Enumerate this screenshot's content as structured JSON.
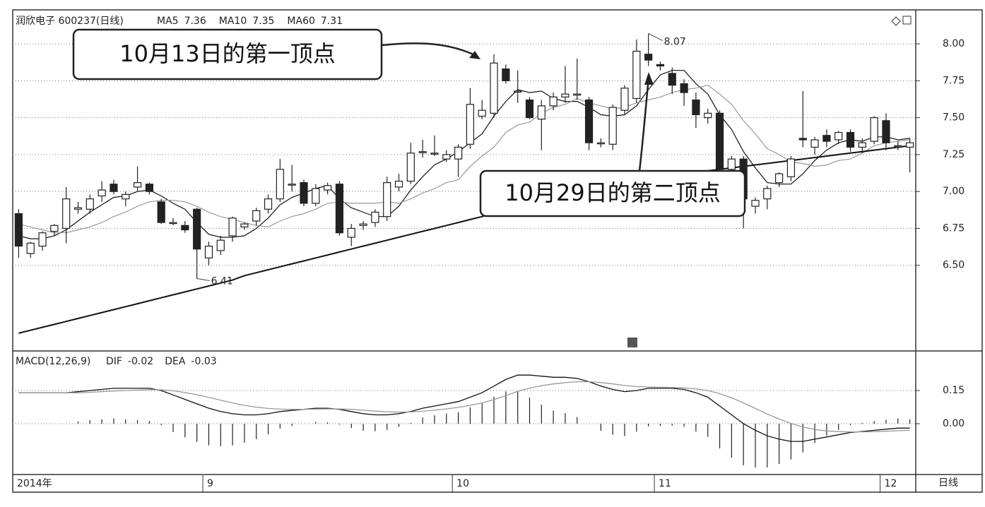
{
  "chart_data": {
    "type": "candlestick",
    "title": "润欣电子 600237(日线)",
    "period_label": "日线",
    "categories": [
      "2014年",
      null,
      null,
      null,
      null,
      null,
      null,
      null,
      null,
      null,
      null,
      null,
      null,
      null,
      null,
      null,
      "9",
      null,
      null,
      null,
      null,
      null,
      null,
      null,
      null,
      null,
      null,
      null,
      null,
      null,
      null,
      null,
      null,
      null,
      null,
      null,
      null,
      "10",
      null,
      null,
      null,
      null,
      null,
      null,
      null,
      null,
      null,
      null,
      null,
      null,
      null,
      null,
      null,
      null,
      "11",
      null,
      null,
      null,
      null,
      null,
      null,
      null,
      null,
      null,
      null,
      null,
      null,
      null,
      null,
      null,
      null,
      null,
      null,
      "12",
      null,
      null
    ],
    "open": [
      6.85,
      6.58,
      6.63,
      6.73,
      6.75,
      6.88,
      6.88,
      6.97,
      7.05,
      6.95,
      7.03,
      7.05,
      6.93,
      6.79,
      6.77,
      6.88,
      6.55,
      6.6,
      6.7,
      6.76,
      6.8,
      6.88,
      6.95,
      7.05,
      7.06,
      6.92,
      7.01,
      7.05,
      6.69,
      6.77,
      6.79,
      6.83,
      7.03,
      7.07,
      7.27,
      7.26,
      7.22,
      7.22,
      7.32,
      7.51,
      7.53,
      7.83,
      7.68,
      7.62,
      7.49,
      7.58,
      7.64,
      7.66,
      7.62,
      7.33,
      7.32,
      7.55,
      7.63,
      7.93,
      7.86,
      7.8,
      7.73,
      7.62,
      7.5,
      7.53,
      7.15,
      7.22,
      6.9,
      6.95,
      7.06,
      7.1,
      7.36,
      7.3,
      7.38,
      7.35,
      7.4,
      7.3,
      7.34,
      7.48,
      7.31,
      7.3
    ],
    "high": [
      6.88,
      6.66,
      6.73,
      6.78,
      7.03,
      6.93,
      6.98,
      7.07,
      7.08,
      7.0,
      7.17,
      7.06,
      6.95,
      6.82,
      6.8,
      6.89,
      6.66,
      6.7,
      6.83,
      6.79,
      6.89,
      6.98,
      7.22,
      7.18,
      7.08,
      7.05,
      7.06,
      7.07,
      6.78,
      6.8,
      6.88,
      7.1,
      7.12,
      7.33,
      7.35,
      7.38,
      7.28,
      7.32,
      7.7,
      7.62,
      7.93,
      7.86,
      7.82,
      7.64,
      7.62,
      7.67,
      7.85,
      7.9,
      7.64,
      7.36,
      7.59,
      7.72,
      8.03,
      8.07,
      7.88,
      7.84,
      7.76,
      7.67,
      7.56,
      7.55,
      7.24,
      7.24,
      6.96,
      7.04,
      7.13,
      7.24,
      7.68,
      7.37,
      7.42,
      7.41,
      7.42,
      7.36,
      7.51,
      7.53,
      7.34,
      7.36
    ],
    "low": [
      6.55,
      6.55,
      6.6,
      6.7,
      6.65,
      6.85,
      6.85,
      6.93,
      6.98,
      6.9,
      7.0,
      6.98,
      6.78,
      6.77,
      6.72,
      6.41,
      6.5,
      6.57,
      6.66,
      6.74,
      6.77,
      6.85,
      6.93,
      7.0,
      6.9,
      6.9,
      6.98,
      6.7,
      6.63,
      6.74,
      6.76,
      6.8,
      7.0,
      7.05,
      7.23,
      7.24,
      7.2,
      7.1,
      7.29,
      7.49,
      7.5,
      7.73,
      7.6,
      7.49,
      7.28,
      7.55,
      7.6,
      7.62,
      7.28,
      7.3,
      7.28,
      7.52,
      7.6,
      7.85,
      7.82,
      7.66,
      7.58,
      7.43,
      7.46,
      7.15,
      7.1,
      6.75,
      6.85,
      6.88,
      7.03,
      7.07,
      7.3,
      7.25,
      7.3,
      7.32,
      7.27,
      7.26,
      7.32,
      7.28,
      7.28,
      7.13
    ],
    "close": [
      6.63,
      6.65,
      6.72,
      6.77,
      6.95,
      6.89,
      6.95,
      7.01,
      7.0,
      6.98,
      7.06,
      7.0,
      6.79,
      6.79,
      6.74,
      6.61,
      6.63,
      6.67,
      6.82,
      6.78,
      6.87,
      6.95,
      7.15,
      7.05,
      6.92,
      7.02,
      7.04,
      6.72,
      6.75,
      6.78,
      6.86,
      7.06,
      7.07,
      7.26,
      7.27,
      7.26,
      7.25,
      7.3,
      7.59,
      7.55,
      7.87,
      7.75,
      7.68,
      7.5,
      7.58,
      7.64,
      7.66,
      7.66,
      7.33,
      7.33,
      7.57,
      7.7,
      7.95,
      7.89,
      7.85,
      7.72,
      7.67,
      7.52,
      7.53,
      7.15,
      7.22,
      6.95,
      6.94,
      7.02,
      7.12,
      7.22,
      7.35,
      7.35,
      7.34,
      7.4,
      7.3,
      7.33,
      7.5,
      7.33,
      7.31,
      7.33
    ],
    "lines": [
      {
        "name": "MA5",
        "color": "#111111",
        "values": [
          6.7,
          6.68,
          6.68,
          6.7,
          6.74,
          6.8,
          6.86,
          6.91,
          6.96,
          6.97,
          7.0,
          7.01,
          6.97,
          6.92,
          6.88,
          6.79,
          6.71,
          6.69,
          6.69,
          6.7,
          6.75,
          6.82,
          6.91,
          6.96,
          6.99,
          7.02,
          7.04,
          6.95,
          6.89,
          6.86,
          6.83,
          6.83,
          6.9,
          7.01,
          7.1,
          7.18,
          7.22,
          7.27,
          7.33,
          7.39,
          7.51,
          7.61,
          7.69,
          7.67,
          7.68,
          7.63,
          7.61,
          7.61,
          7.57,
          7.52,
          7.51,
          7.52,
          7.58,
          7.69,
          7.79,
          7.82,
          7.82,
          7.73,
          7.66,
          7.52,
          7.42,
          7.27,
          7.16,
          7.06,
          7.05,
          7.05,
          7.12,
          7.21,
          7.28,
          7.33,
          7.35,
          7.34,
          7.37,
          7.37,
          7.35,
          7.36
        ]
      },
      {
        "name": "MA10",
        "color": "#999999",
        "values": [
          6.78,
          6.76,
          6.74,
          6.72,
          6.72,
          6.74,
          6.76,
          6.79,
          6.83,
          6.86,
          6.9,
          6.93,
          6.94,
          6.94,
          6.93,
          6.9,
          6.86,
          6.83,
          6.81,
          6.79,
          6.77,
          6.76,
          6.8,
          6.83,
          6.85,
          6.88,
          6.92,
          6.93,
          6.92,
          6.92,
          6.92,
          6.93,
          6.92,
          6.95,
          6.99,
          7.02,
          7.06,
          7.08,
          7.17,
          7.24,
          7.3,
          7.4,
          7.45,
          7.47,
          7.53,
          7.57,
          7.59,
          7.63,
          7.6,
          7.58,
          7.56,
          7.57,
          7.6,
          7.62,
          7.64,
          7.67,
          7.69,
          7.7,
          7.72,
          7.66,
          7.59,
          7.48,
          7.39,
          7.29,
          7.25,
          7.2,
          7.19,
          7.17,
          7.18,
          7.21,
          7.22,
          7.26,
          7.31,
          7.33,
          7.34,
          7.35
        ]
      },
      {
        "name": "MA60",
        "color": "#111111",
        "values": [
          6.04,
          6.06,
          6.08,
          6.1,
          6.12,
          6.14,
          6.16,
          6.18,
          6.2,
          6.22,
          6.24,
          6.26,
          6.28,
          6.3,
          6.32,
          6.34,
          6.36,
          6.38,
          6.4,
          6.43,
          6.45,
          6.47,
          6.49,
          6.51,
          6.53,
          6.55,
          6.57,
          6.59,
          6.61,
          6.63,
          6.65,
          6.67,
          6.69,
          6.71,
          6.73,
          6.75,
          6.77,
          6.79,
          6.81,
          6.83,
          6.85,
          6.87,
          6.89,
          6.91,
          6.93,
          6.95,
          6.97,
          6.98,
          7.0,
          7.01,
          7.03,
          7.05,
          7.07,
          7.09,
          7.1,
          7.11,
          7.12,
          7.13,
          7.14,
          7.15,
          7.16,
          7.17,
          7.18,
          7.19,
          7.2,
          7.21,
          7.22,
          7.23,
          7.24,
          7.25,
          7.26,
          7.27,
          7.28,
          7.29,
          7.3,
          7.31
        ]
      }
    ],
    "ylim": [
      5.92,
      8.23
    ],
    "yticks": [
      {
        "value": 6.5,
        "label": "6.50"
      },
      {
        "value": 6.75,
        "label": "6.75"
      },
      {
        "value": 7,
        "label": "7.00"
      },
      {
        "value": 7.25,
        "label": "7.25"
      },
      {
        "value": 7.5,
        "label": "7.50"
      },
      {
        "value": 7.75,
        "label": "7.75"
      },
      {
        "value": 8,
        "label": "8.00"
      }
    ],
    "grid": true,
    "annotations": [
      {
        "text": "10月13日的第一顶点"
      },
      {
        "text": "10月29日的第二顶点"
      }
    ],
    "macd": {
      "title": "MACD(12,26,9)",
      "dif": {
        "name": "DIF",
        "color": "#111111",
        "values": [
          0.14,
          0.14,
          0.14,
          0.14,
          0.14,
          0.145,
          0.15,
          0.155,
          0.16,
          0.16,
          0.16,
          0.16,
          0.15,
          0.13,
          0.11,
          0.09,
          0.07,
          0.055,
          0.045,
          0.04,
          0.04,
          0.045,
          0.055,
          0.06,
          0.065,
          0.07,
          0.07,
          0.065,
          0.055,
          0.045,
          0.04,
          0.04,
          0.045,
          0.055,
          0.07,
          0.08,
          0.09,
          0.1,
          0.12,
          0.14,
          0.17,
          0.2,
          0.22,
          0.22,
          0.215,
          0.21,
          0.21,
          0.205,
          0.19,
          0.17,
          0.155,
          0.145,
          0.15,
          0.16,
          0.16,
          0.16,
          0.155,
          0.14,
          0.12,
          0.08,
          0.04,
          0.0,
          -0.03,
          -0.055,
          -0.07,
          -0.08,
          -0.08,
          -0.07,
          -0.06,
          -0.05,
          -0.04,
          -0.035,
          -0.03,
          -0.025,
          -0.02,
          -0.02
        ]
      },
      "dea": {
        "name": "DEA",
        "color": "#999999",
        "values": [
          0.14,
          0.14,
          0.14,
          0.14,
          0.14,
          0.14,
          0.142,
          0.145,
          0.148,
          0.15,
          0.152,
          0.154,
          0.153,
          0.149,
          0.141,
          0.131,
          0.119,
          0.106,
          0.094,
          0.083,
          0.075,
          0.069,
          0.066,
          0.065,
          0.065,
          0.066,
          0.067,
          0.067,
          0.065,
          0.061,
          0.057,
          0.054,
          0.052,
          0.053,
          0.056,
          0.061,
          0.067,
          0.074,
          0.083,
          0.094,
          0.109,
          0.127,
          0.146,
          0.161,
          0.172,
          0.18,
          0.186,
          0.19,
          0.19,
          0.186,
          0.18,
          0.173,
          0.168,
          0.166,
          0.165,
          0.164,
          0.162,
          0.158,
          0.15,
          0.136,
          0.117,
          0.094,
          0.069,
          0.044,
          0.021,
          0.001,
          -0.015,
          -0.026,
          -0.033,
          -0.036,
          -0.037,
          -0.037,
          -0.036,
          -0.034,
          -0.032,
          -0.03
        ]
      },
      "histogram": [
        0,
        0,
        0,
        0,
        0,
        0.01,
        0.016,
        0.02,
        0.024,
        0.02,
        0.016,
        0.012,
        -0.006,
        -0.038,
        -0.062,
        -0.082,
        -0.098,
        -0.102,
        -0.098,
        -0.086,
        -0.07,
        -0.048,
        -0.022,
        -0.01,
        0,
        0.008,
        0.006,
        -0.004,
        -0.02,
        -0.032,
        -0.034,
        -0.028,
        -0.014,
        0.004,
        0.028,
        0.038,
        0.046,
        0.052,
        0.074,
        0.092,
        0.122,
        0.146,
        0.148,
        0.118,
        0.086,
        0.06,
        0.048,
        0.03,
        0,
        -0.032,
        -0.05,
        -0.056,
        -0.036,
        -0.012,
        -0.01,
        -0.008,
        -0.014,
        -0.036,
        -0.06,
        -0.112,
        -0.154,
        -0.188,
        -0.198,
        -0.198,
        -0.182,
        -0.162,
        -0.13,
        -0.088,
        -0.054,
        -0.028,
        -0.006,
        0.004,
        0.012,
        0.018,
        0.024,
        0.02
      ],
      "ylim": [
        -0.23,
        0.326
      ],
      "yticks": [
        {
          "value": 0,
          "label": "0.00"
        },
        0.15
      ]
    }
  }
}
